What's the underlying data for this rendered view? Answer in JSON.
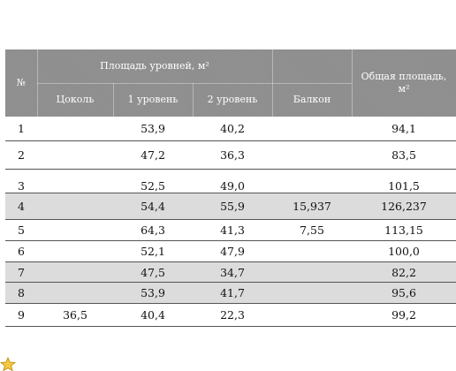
{
  "header": {
    "num": "№",
    "area_levels": "Площадь уровней, м²",
    "total_line1": "Общая площадь,",
    "total_line2": "м²",
    "cols": [
      "Цоколь",
      "1 уровень",
      "2 уровень",
      "Балкон"
    ]
  },
  "rows": [
    {
      "num": "1",
      "tsokol": "",
      "l1": "53,9",
      "l2": "40,2",
      "balkon": "",
      "total": "94,1",
      "highlight": false
    },
    {
      "num": "2",
      "tsokol": "",
      "l1": "47,2",
      "l2": "36,3",
      "balkon": "",
      "total": "83,5",
      "highlight": false
    },
    {
      "num": "3",
      "tsokol": "",
      "l1": "52,5",
      "l2": "49,0",
      "balkon": "",
      "total": "101,5",
      "highlight": false
    },
    {
      "num": "4",
      "tsokol": "",
      "l1": "54,4",
      "l2": "55,9",
      "balkon": "15,937",
      "total": "126,237",
      "highlight": true
    },
    {
      "num": "5",
      "tsokol": "",
      "l1": "64,3",
      "l2": "41,3",
      "balkon": "7,55",
      "total": "113,15",
      "highlight": false
    },
    {
      "num": "6",
      "tsokol": "",
      "l1": "52,1",
      "l2": "47,9",
      "balkon": "",
      "total": "100,0",
      "highlight": false
    },
    {
      "num": "7",
      "tsokol": "",
      "l1": "47,5",
      "l2": "34,7",
      "balkon": "",
      "total": "82,2",
      "highlight": true
    },
    {
      "num": "8",
      "tsokol": "",
      "l1": "53,9",
      "l2": "41,7",
      "balkon": "",
      "total": "95,6",
      "highlight": true
    },
    {
      "num": "9",
      "tsokol": "36,5",
      "l1": "40,4",
      "l2": "22,3",
      "balkon": "",
      "total": "99,2",
      "highlight": false
    }
  ],
  "icons": {
    "corner": "star-icon"
  },
  "colors": {
    "header_bg": "#8e8e8e",
    "highlight_row": "#dcdcdc"
  }
}
